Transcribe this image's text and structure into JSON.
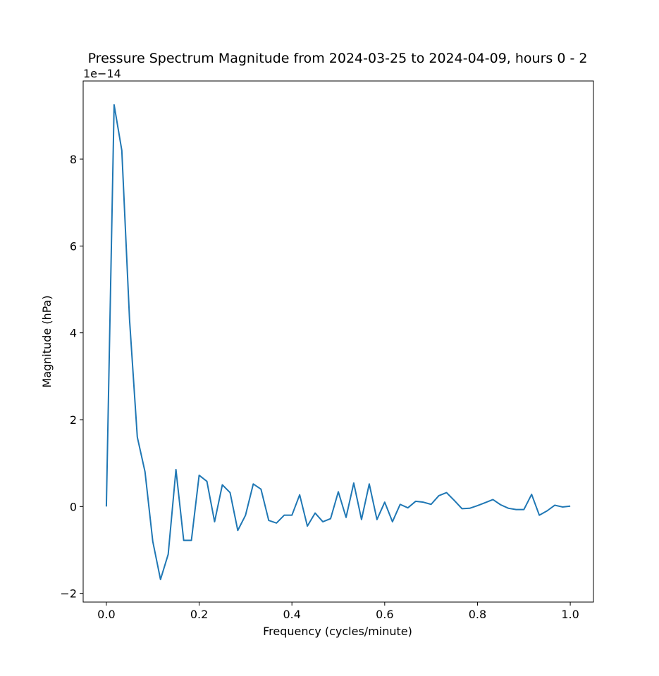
{
  "chart_data": {
    "type": "line",
    "title": "Pressure Spectrum Magnitude from 2024-03-25 to 2024-04-09, hours 0 - 2",
    "xlabel": "Frequency (cycles/minute)",
    "ylabel": "Magnitude (hPa)",
    "offset_text": "1e−14",
    "y_scale_factor": 1e-14,
    "xlim": [
      -0.05,
      1.05
    ],
    "ylim": [
      -2.2,
      9.8
    ],
    "x_ticks": [
      0.0,
      0.2,
      0.4,
      0.6,
      0.8,
      1.0
    ],
    "x_tick_labels": [
      "0.0",
      "0.2",
      "0.4",
      "0.6",
      "0.8",
      "1.0"
    ],
    "y_ticks": [
      -2,
      0,
      2,
      4,
      6,
      8
    ],
    "y_tick_labels": [
      "−2",
      "0",
      "2",
      "4",
      "6",
      "8"
    ],
    "grid": false,
    "line_color": "#1f77b4",
    "series": [
      {
        "x": [
          0.0,
          0.0167,
          0.0333,
          0.05,
          0.0667,
          0.0833,
          0.1,
          0.1167,
          0.1333,
          0.15,
          0.1667,
          0.1833,
          0.2,
          0.2167,
          0.2333,
          0.25,
          0.2667,
          0.2833,
          0.3,
          0.3167,
          0.3333,
          0.35,
          0.3667,
          0.3833,
          0.4,
          0.4167,
          0.4333,
          0.45,
          0.4667,
          0.4833,
          0.5,
          0.5167,
          0.5333,
          0.55,
          0.5667,
          0.5833,
          0.6,
          0.6167,
          0.6333,
          0.65,
          0.6667,
          0.6833,
          0.7,
          0.7167,
          0.7333,
          0.75,
          0.7667,
          0.7833,
          0.8,
          0.8167,
          0.8333,
          0.85,
          0.8667,
          0.8833,
          0.9,
          0.9167,
          0.9333,
          0.95,
          0.9667,
          0.9833,
          1.0
        ],
        "values": [
          0.0,
          9.25,
          8.2,
          4.3,
          1.6,
          0.8,
          -0.8,
          -1.68,
          -1.1,
          0.85,
          -0.78,
          -0.78,
          0.72,
          0.58,
          -0.35,
          0.5,
          0.32,
          -0.55,
          -0.2,
          0.52,
          0.4,
          -0.32,
          -0.38,
          -0.2,
          -0.2,
          0.27,
          -0.45,
          -0.15,
          -0.35,
          -0.28,
          0.34,
          -0.25,
          0.54,
          -0.3,
          0.52,
          -0.3,
          0.1,
          -0.35,
          0.05,
          -0.03,
          0.12,
          0.1,
          0.05,
          0.25,
          0.32,
          0.14,
          -0.05,
          -0.04,
          0.02,
          0.09,
          0.16,
          0.04,
          -0.04,
          -0.07,
          -0.07,
          0.28,
          -0.2,
          -0.1,
          0.03,
          -0.01,
          0.01
        ]
      }
    ]
  }
}
